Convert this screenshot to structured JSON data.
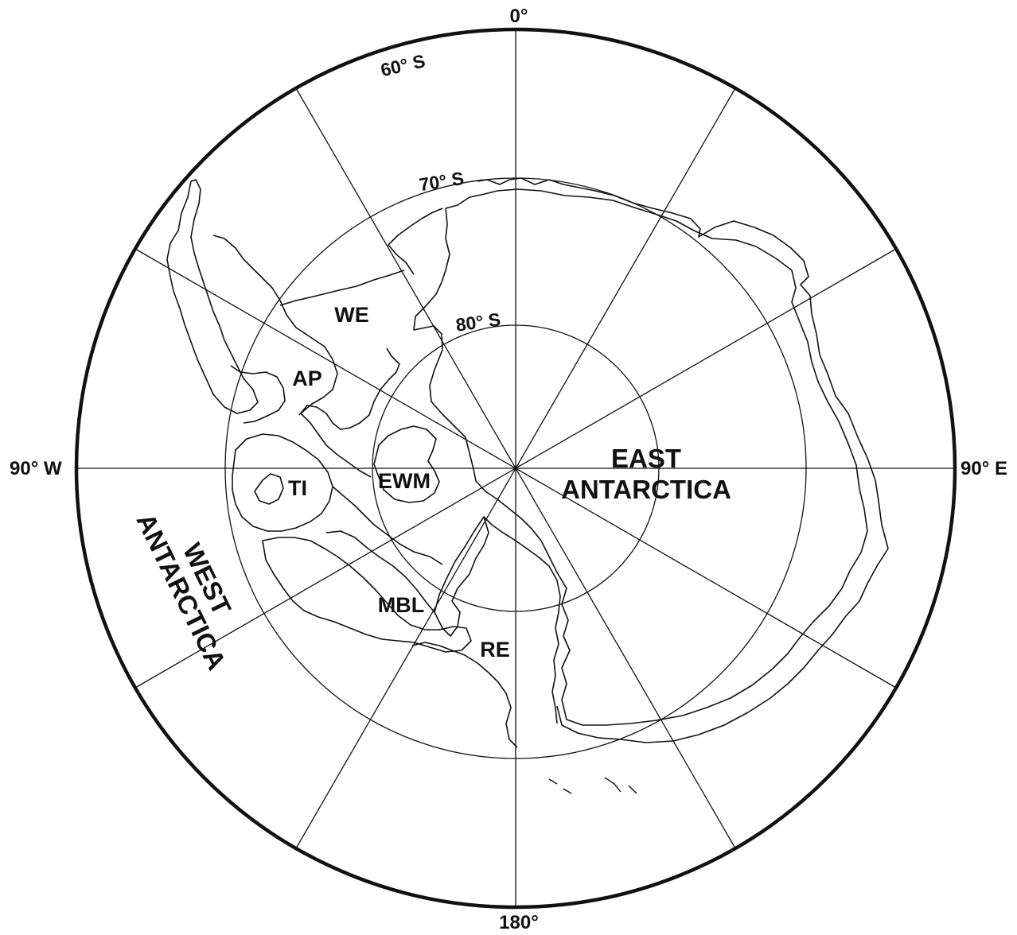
{
  "map": {
    "longitude_labels": {
      "north": "0°",
      "south": "180°",
      "west": "90° W",
      "east": "90° E"
    },
    "latitude_labels": {
      "lat60": "60° S",
      "lat70": "70° S",
      "lat80": "80° S"
    },
    "regions": {
      "we": "WE",
      "ap": "AP",
      "ti": "TI",
      "ewm": "EWM",
      "mbl": "MBL",
      "re": "RE"
    },
    "east_antarctica": {
      "line1": "EAST",
      "line2": "ANTARCTICA"
    },
    "west_antarctica": {
      "line1": "WEST",
      "line2": "ANTARCTICA"
    },
    "colors": {
      "ink": "#111111",
      "background": "#ffffff"
    }
  }
}
